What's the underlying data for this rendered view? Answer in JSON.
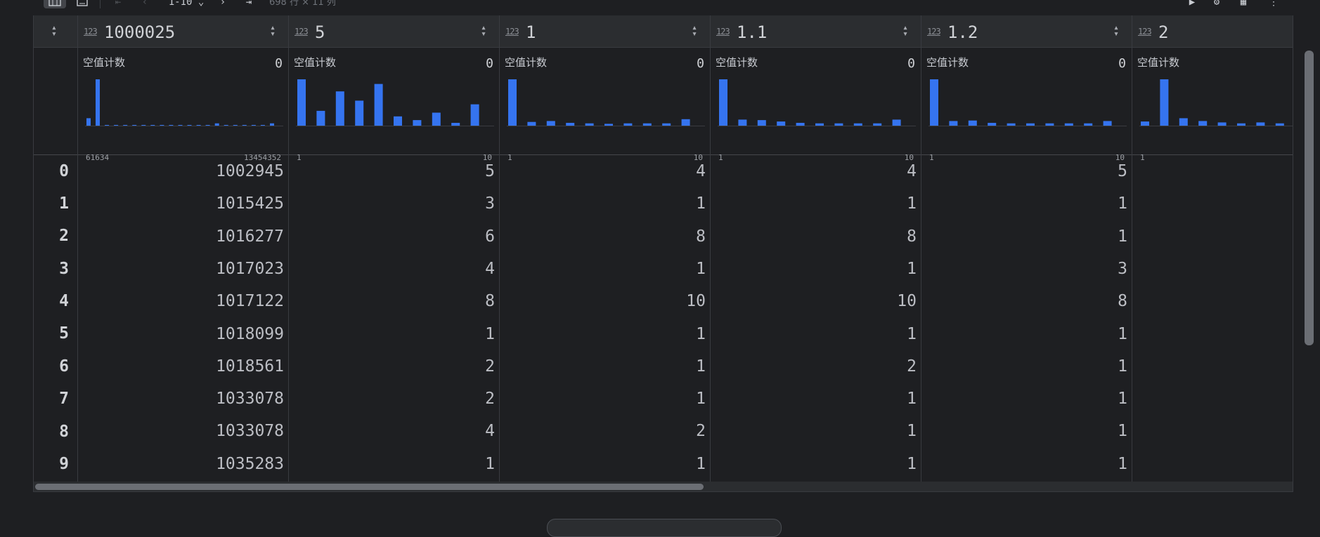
{
  "toolbar": {
    "table_view_icon": "table-icon",
    "export_icon": "export-icon",
    "first_page_icon": "first-page-icon",
    "prev_page_icon": "previous-page-icon",
    "page_range": "1-10 ⌄",
    "next_page_icon": "next-page-icon",
    "last_page_icon": "last-page-icon",
    "rows_info": "698 行 × 11 列"
  },
  "table": {
    "null_count_label": "空值计数",
    "columns": [
      {
        "name": "1000025",
        "type": "123",
        "null_count": "0",
        "range_min": "61634",
        "range_max": "13454352",
        "hist": [
          0.16,
          1.0,
          0,
          0,
          0,
          0,
          0,
          0,
          0,
          0,
          0,
          0,
          0,
          0,
          0.05,
          0,
          0,
          0,
          0,
          0,
          0.05
        ],
        "values": [
          "1002945",
          "1015425",
          "1016277",
          "1017023",
          "1017122",
          "1018099",
          "1018561",
          "1033078",
          "1033078",
          "1035283"
        ]
      },
      {
        "name": "5",
        "type": "123",
        "null_count": "0",
        "range_min": "1",
        "range_max": "10",
        "hist": [
          1.0,
          0.32,
          0.74,
          0.54,
          0.9,
          0.2,
          0.12,
          0.28,
          0.06,
          0.46
        ],
        "values": [
          "5",
          "3",
          "6",
          "4",
          "8",
          "1",
          "2",
          "2",
          "4",
          "1"
        ]
      },
      {
        "name": "1",
        "type": "123",
        "null_count": "0",
        "range_min": "1",
        "range_max": "10",
        "hist": [
          1.0,
          0.08,
          0.1,
          0.06,
          0.05,
          0.04,
          0.05,
          0.05,
          0.05,
          0.14
        ],
        "values": [
          "4",
          "1",
          "8",
          "1",
          "10",
          "1",
          "1",
          "1",
          "2",
          "1"
        ]
      },
      {
        "name": "1.1",
        "type": "123",
        "null_count": "0",
        "range_min": "1",
        "range_max": "10",
        "hist": [
          1.0,
          0.13,
          0.12,
          0.09,
          0.06,
          0.05,
          0.05,
          0.05,
          0.05,
          0.13
        ],
        "values": [
          "4",
          "1",
          "8",
          "1",
          "10",
          "1",
          "2",
          "1",
          "1",
          "1"
        ]
      },
      {
        "name": "1.2",
        "type": "123",
        "null_count": "0",
        "range_min": "1",
        "range_max": "10",
        "hist": [
          1.0,
          0.1,
          0.11,
          0.06,
          0.05,
          0.05,
          0.05,
          0.05,
          0.05,
          0.1
        ],
        "values": [
          "5",
          "1",
          "1",
          "3",
          "8",
          "1",
          "1",
          "1",
          "1",
          "1"
        ]
      },
      {
        "name": "2",
        "type": "123",
        "null_count": "0",
        "range_min": "1",
        "range_max": "",
        "hist": [
          0.09,
          1.0,
          0.16,
          0.1,
          0.07,
          0.05,
          0.07,
          0.05,
          0.05,
          0.05
        ],
        "values": [
          "",
          "",
          "",
          "",
          "",
          "",
          "",
          "",
          "",
          ""
        ]
      }
    ],
    "index": [
      "0",
      "1",
      "2",
      "3",
      "4",
      "5",
      "6",
      "7",
      "8",
      "9"
    ]
  },
  "colors": {
    "bar": "#3574f0",
    "background": "#1e1f22",
    "header": "#2b2d30"
  }
}
